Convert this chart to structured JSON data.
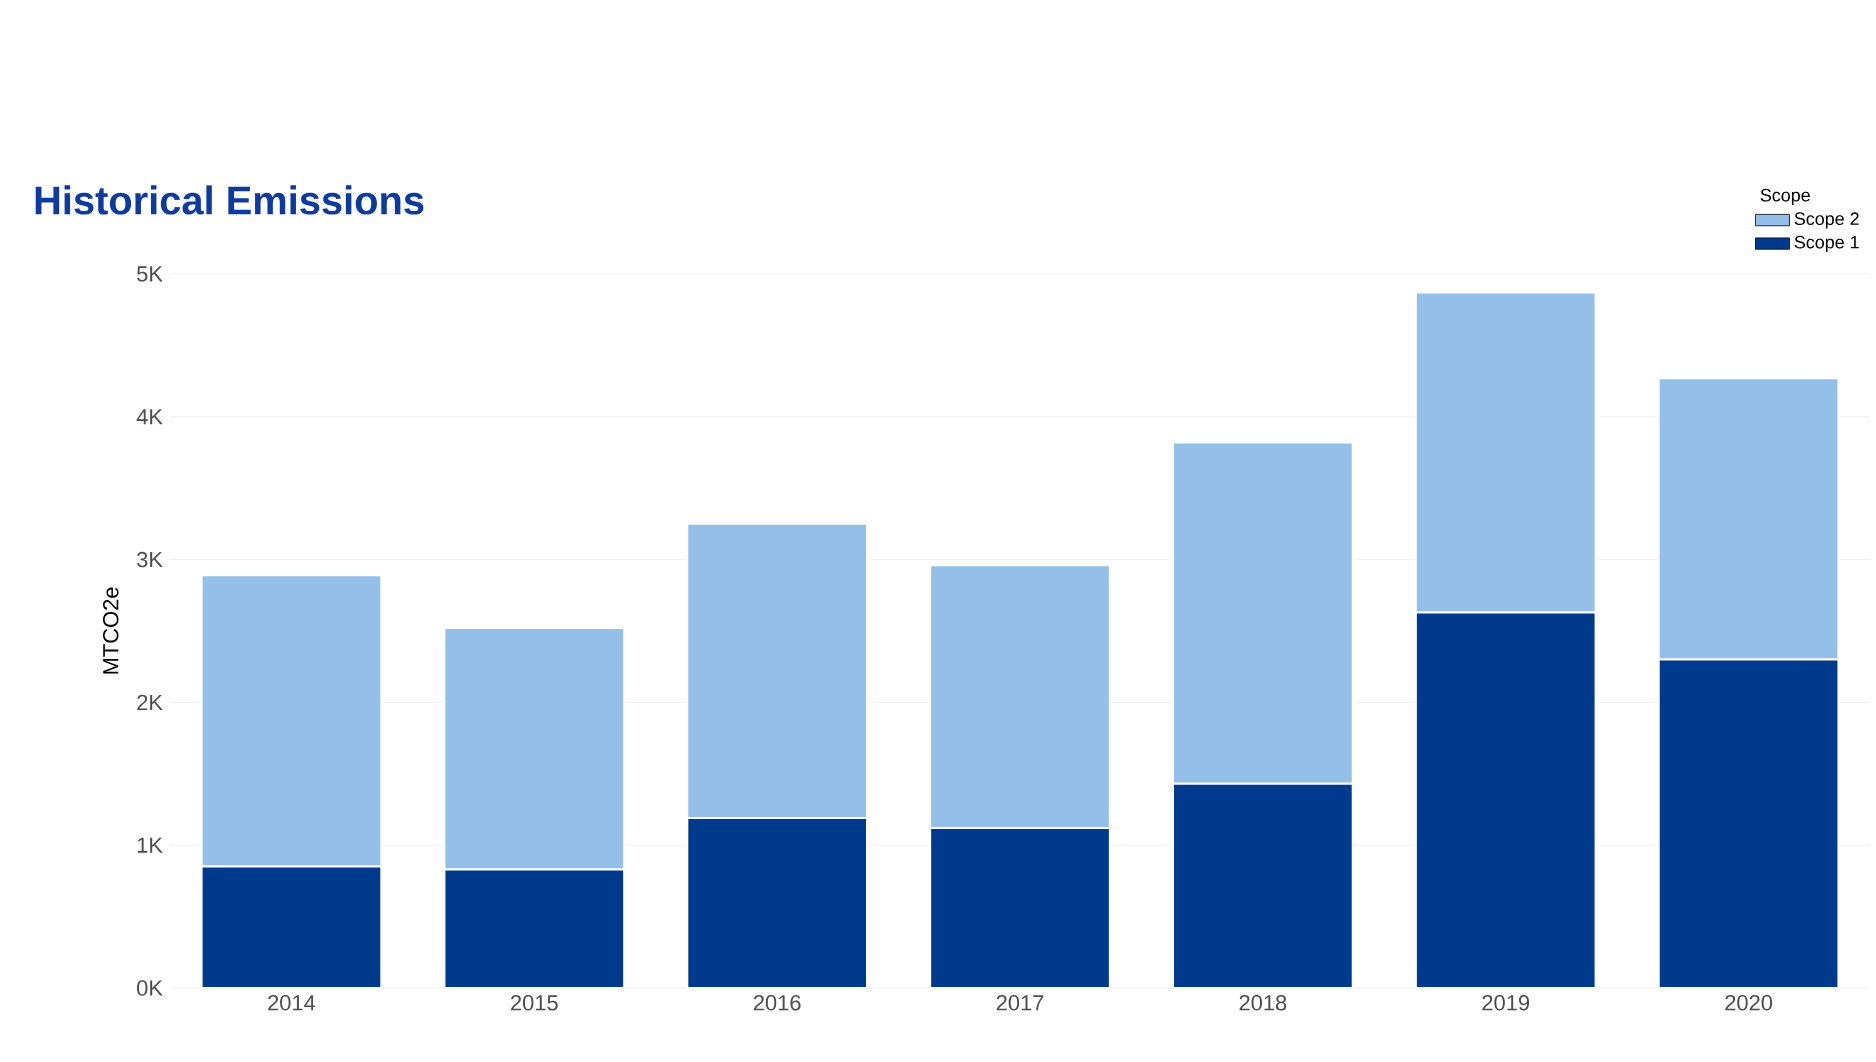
{
  "chart_data": {
    "type": "bar",
    "title": "Historical Emissions",
    "ylabel": "MTCO2e",
    "legend_title": "Scope",
    "stacked": true,
    "grid": "y",
    "legend": "top right",
    "categories": [
      "2014",
      "2015",
      "2016",
      "2017",
      "2018",
      "2019",
      "2020"
    ],
    "series": [
      {
        "name": "Scope 1",
        "color": "#003a8c",
        "values": [
          850,
          830,
          1190,
          1120,
          1430,
          2630,
          2300
        ]
      },
      {
        "name": "Scope 2",
        "color": "#93bfe8",
        "values": [
          2040,
          1690,
          2060,
          1840,
          2390,
          2240,
          1970
        ]
      }
    ],
    "ylim": [
      0,
      5000
    ],
    "yticks": [
      {
        "value": 0,
        "label": "0K"
      },
      {
        "value": 1000,
        "label": "1K"
      },
      {
        "value": 2000,
        "label": "2K"
      },
      {
        "value": 3000,
        "label": "3K"
      },
      {
        "value": 4000,
        "label": "4K"
      },
      {
        "value": 5000,
        "label": "5K"
      }
    ]
  }
}
